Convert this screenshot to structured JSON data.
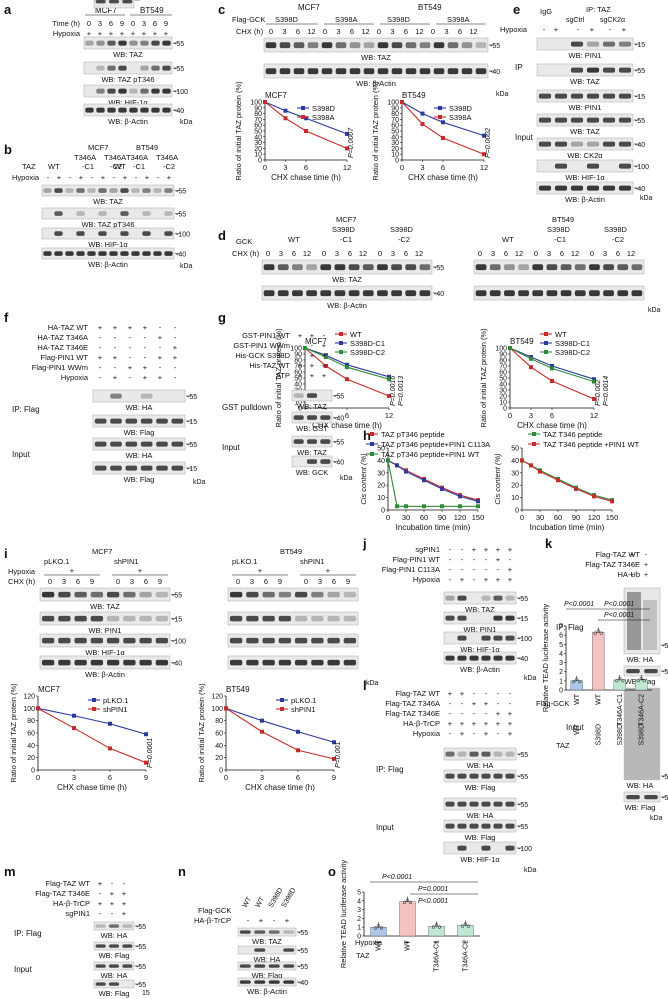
{
  "panels": [
    {
      "letter": "a",
      "rows": [
        [
          "Time (h)",
          "0",
          "3",
          "6",
          "9",
          "0",
          "3",
          "6",
          "9"
        ],
        [
          "Hypoxia",
          "+",
          "+",
          "+",
          "+",
          "+",
          "+",
          "+",
          "+"
        ]
      ],
      "groups": [
        "MCF7",
        "BT549"
      ],
      "blots": [
        "WB: TAZ",
        "WB: TAZ pT346",
        "WB: HIF-1α",
        "WB: β-Actin"
      ],
      "mw": [
        "55",
        "55",
        "100",
        "40"
      ],
      "kda": "kDa"
    },
    {
      "letter": "b",
      "groups": [
        "MCF7",
        "T346A",
        "T346A",
        "BT549",
        "T346A",
        "T346A",
        "-C1",
        "-C2",
        "-C1",
        "-C2"
      ],
      "rows": [
        [
          "TAZ",
          "WT",
          "WT"
        ],
        [
          "Hypoxia",
          "-",
          "+",
          "-",
          "+",
          "-",
          "+",
          "-",
          "+",
          "-",
          "+",
          "-",
          "+"
        ]
      ],
      "blots": [
        "WB: TAZ",
        "WB: TAZ pT346",
        "WB: HIF-1α",
        "WB: β-Actin"
      ],
      "mw": [
        "55",
        "55",
        "100",
        "40"
      ],
      "kda": "kDa"
    },
    {
      "letter": "c",
      "groups": [
        "MCF7",
        "BT549",
        "S398D",
        "S398A",
        "S398D",
        "S398A"
      ],
      "rows": [
        [
          "Flag-GCK"
        ],
        [
          "CHX (h)",
          "0",
          "3",
          "6",
          "12",
          "0",
          "3",
          "6",
          "12",
          "0",
          "3",
          "6",
          "12",
          "0",
          "3",
          "6",
          "12"
        ]
      ],
      "blots": [
        "WB: TAZ",
        "WB: β-Actin"
      ],
      "mw": [
        "55",
        "40"
      ],
      "kda": "kDa"
    },
    {
      "letter": "d",
      "groups": [
        "MCF7",
        "BT549",
        "S398D",
        "S398D",
        "S398D",
        "S398D",
        "WT",
        "-C1",
        "-C2",
        "WT",
        "-C1",
        "-C2"
      ],
      "rows": [
        [
          "GCK"
        ],
        [
          "CHX (h)",
          "0",
          "3",
          "6",
          "12"
        ]
      ],
      "blots": [
        "WB: TAZ",
        "WB: β-Actin"
      ],
      "mw": [
        "55",
        "40"
      ],
      "kda": "kDa"
    },
    {
      "letter": "e",
      "groups": [
        "IgG",
        "IP: TAZ",
        "sgCtrl",
        "sgCK2α"
      ],
      "rows": [
        [
          "Hypoxia",
          "-",
          "+",
          "-",
          "+"
        ]
      ],
      "sections": [
        "IP",
        "Input"
      ],
      "blots": [
        "WB: PIN1",
        "WB: TAZ",
        "WB: PIN1",
        "WB: TAZ",
        "WB: CK2α",
        "WB: HIF-1α",
        "WB: β-Actin"
      ],
      "mw": [
        "15",
        "55",
        "15",
        "55",
        "40",
        "100",
        "40"
      ],
      "kda": "kDa"
    },
    {
      "letter": "f",
      "rows": [
        [
          "HA-TAZ WT",
          "+",
          "+",
          "+",
          "+",
          "-",
          "-"
        ],
        [
          "HA-TAZ T346A",
          "-",
          "-",
          "-",
          "-",
          "+",
          "-"
        ],
        [
          "HA-TAZ T346E",
          "-",
          "-",
          "-",
          "-",
          "-",
          "+"
        ],
        [
          "Flag-PIN1 WT",
          "+",
          "+",
          "-",
          "-",
          "+",
          "+"
        ],
        [
          "Flag-PIN1 WWm",
          "-",
          "-",
          "+",
          "+",
          "-",
          "-"
        ],
        [
          "Hypoxia",
          "-",
          "+",
          "-",
          "+",
          "+",
          "-"
        ]
      ],
      "sections": [
        "IP: Flag",
        "Input"
      ],
      "blots": [
        "WB: HA",
        "WB: Flag",
        "WB: HA",
        "WB: Flag"
      ],
      "mw": [
        "55",
        "15",
        "55",
        "15"
      ],
      "kda": "kDa"
    },
    {
      "letter": "g",
      "rows": [
        [
          "GST-PIN1 WT",
          "+",
          "+",
          "-"
        ],
        [
          "GST-PIN1 WWm",
          "-",
          "-",
          "+"
        ],
        [
          "His-GCK S398D",
          "-",
          "+",
          "+"
        ],
        [
          "His-TAZ WT",
          "+",
          "+",
          "+"
        ],
        [
          "ATP",
          "+",
          "+",
          "+"
        ]
      ],
      "sections": [
        "GST pulldown",
        "Input"
      ],
      "blots": [
        "WB: TAZ",
        "WB: GST",
        "WB: TAZ",
        "WB: GCK"
      ],
      "mw": [
        "55",
        "40",
        "55",
        "40"
      ],
      "kda": "kDa"
    },
    {
      "letter": "i",
      "groups": [
        "MCF7",
        "BT549",
        "pLKO.1",
        "shPIN1",
        "pLKO.1",
        "shPIN1"
      ],
      "rows": [
        [
          "Hypoxia",
          "+"
        ],
        [
          "CHX (h)",
          "0",
          "3",
          "6",
          "9"
        ]
      ],
      "blots": [
        "WB: TAZ",
        "WB: PIN1",
        "WB: HIF-1α",
        "WB: β-Actin"
      ],
      "mw": [
        "55",
        "15",
        "100",
        "40"
      ],
      "kda": "kDa"
    },
    {
      "letter": "j",
      "rows": [
        [
          "sgPIN1",
          "-",
          "-",
          "+",
          "+",
          "+",
          "+"
        ],
        [
          "Flag-PIN1 WT",
          "-",
          "-",
          "-",
          "-",
          "+",
          "-"
        ],
        [
          "Flag-PIN1 C113A",
          "-",
          "-",
          "-",
          "-",
          "-",
          "+"
        ],
        [
          "Hypoxia",
          "-",
          "+",
          "-",
          "+",
          "+",
          "+"
        ]
      ],
      "blots": [
        "WB: TAZ",
        "WB: PIN1",
        "WB: HIF-1α",
        "WB: β-Actin"
      ],
      "mw": [
        "55",
        "15",
        "100",
        "40"
      ],
      "kda": "kDa"
    },
    {
      "letter": "k",
      "rows": [
        [
          "Flag-TAZ WT",
          "+",
          "-"
        ],
        [
          "Flag-TAZ T346E",
          "-",
          "+"
        ],
        [
          "HA-Ub",
          "+",
          "+"
        ]
      ],
      "sections": [
        "IP: Flag",
        "Input"
      ],
      "blots": [
        "WB: HA",
        "WB: Flag",
        "WB: HA",
        "WB: Flag"
      ],
      "mw": [
        "55",
        "55",
        "55",
        "55"
      ],
      "kda": "kDa"
    },
    {
      "letter": "l",
      "rows": [
        [
          "Flag-TAZ WT",
          "+",
          "+",
          "-",
          "-",
          "-",
          "-"
        ],
        [
          "Flag-TAZ T346A",
          "-",
          "-",
          "+",
          "+",
          "-",
          "-"
        ],
        [
          "Flag-TAZ T346E",
          "-",
          "-",
          "-",
          "-",
          "+",
          "+"
        ],
        [
          "HA-β-TrCP",
          "+",
          "+",
          "+",
          "+",
          "+",
          "+"
        ],
        [
          "Hypoxia",
          "-",
          "+",
          "-",
          "+",
          "-",
          "+"
        ]
      ],
      "sections": [
        "IP: Flag",
        "Input"
      ],
      "blots": [
        "WB: HA",
        "WB: Flag",
        "WB: HA",
        "WB: Flag",
        "WB: HIF-1α"
      ],
      "mw": [
        "55",
        "55",
        "55",
        "55",
        "100"
      ],
      "kda": "kDa"
    },
    {
      "letter": "m",
      "rows": [
        [
          "Flag-TAZ WT",
          "+",
          "-",
          "-"
        ],
        [
          "Flag-TAZ T346E",
          "-",
          "+",
          "+"
        ],
        [
          "HA-β-TrCP",
          "+",
          "+",
          "+"
        ],
        [
          "sgPIN1",
          "-",
          "-",
          "+"
        ]
      ],
      "sections": [
        "IP: Flag",
        "Input"
      ],
      "blots": [
        "WB: HA",
        "WB: Flag",
        "WB: HA",
        "WB: Flag",
        "WB: PIN1"
      ],
      "mw": [
        "55",
        "55",
        "55",
        "55",
        "15"
      ],
      "kda": "kDa"
    },
    {
      "letter": "n",
      "rows": [
        [
          "Flag-GCK",
          "WT",
          "WT",
          "S398D",
          "S398D"
        ],
        [
          "HA-β-TrCP",
          "-",
          "+",
          "-",
          "+"
        ]
      ],
      "blots": [
        "WB: TAZ",
        "WB: HA",
        "WB: Flag",
        "WB: β-Actin"
      ],
      "mw": [
        "55",
        "55",
        "55",
        "40"
      ],
      "kda": "kDa"
    }
  ],
  "chart_data": [
    {
      "id": "c-mcf7",
      "type": "line",
      "title": "MCF7",
      "xlabel": "CHX chase time (h)",
      "ylabel": "Ratio of initial TAZ protein (%)",
      "x": [
        0,
        3,
        6,
        12
      ],
      "xticks": [
        "0",
        "3",
        "6",
        "12"
      ],
      "yticks": [
        "0",
        "10",
        "20",
        "30",
        "40",
        "50",
        "60",
        "70",
        "80",
        "90",
        "100"
      ],
      "ylim": [
        0,
        100
      ],
      "series": [
        {
          "name": "S398D",
          "values": [
            100,
            85,
            72,
            45
          ],
          "color": "#2b3a9b"
        },
        {
          "name": "S398A",
          "values": [
            100,
            72,
            50,
            20
          ],
          "color": "#c72a2a"
        }
      ],
      "annotations": [
        "P=0.0007"
      ]
    },
    {
      "id": "c-bt549",
      "type": "line",
      "title": "BT549",
      "xlabel": "CHX chase time (h)",
      "ylabel": "Ratio of initial TAZ protein (%)",
      "x": [
        0,
        3,
        6,
        12
      ],
      "xticks": [
        "0",
        "3",
        "6",
        "12"
      ],
      "yticks": [
        "0",
        "10",
        "20",
        "30",
        "40",
        "50",
        "60",
        "70",
        "80",
        "90",
        "100"
      ],
      "ylim": [
        0,
        100
      ],
      "series": [
        {
          "name": "S398D",
          "values": [
            100,
            80,
            65,
            42
          ],
          "color": "#2b3a9b"
        },
        {
          "name": "S398A",
          "values": [
            100,
            62,
            38,
            10
          ],
          "color": "#c72a2a"
        }
      ],
      "annotations": [
        "P=0.0002"
      ]
    },
    {
      "id": "d-mcf7",
      "type": "line",
      "title": "MCF7",
      "xlabel": "CHX chase time (h)",
      "ylabel": "Ratio of initial TAZ protein (%)",
      "x": [
        0,
        3,
        6,
        12
      ],
      "xticks": [
        "0",
        "3",
        "6",
        "12"
      ],
      "yticks": [
        "0",
        "10",
        "20",
        "30",
        "40",
        "50",
        "60",
        "70",
        "80",
        "90",
        "100"
      ],
      "ylim": [
        0,
        100
      ],
      "series": [
        {
          "name": "WT",
          "values": [
            100,
            70,
            48,
            20
          ],
          "color": "#c72a2a"
        },
        {
          "name": "S398D-C1",
          "values": [
            100,
            88,
            72,
            52
          ],
          "color": "#2b3a9b"
        },
        {
          "name": "S398D-C2",
          "values": [
            100,
            85,
            68,
            48
          ],
          "color": "#2e8b3a"
        }
      ],
      "annotations": [
        "P=0.0016",
        "P=0.0013"
      ]
    },
    {
      "id": "d-bt549",
      "type": "line",
      "title": "BT549",
      "xlabel": "CHX chase time (h)",
      "ylabel": "Ratio of initial TAZ protein (%)",
      "x": [
        0,
        3,
        6,
        12
      ],
      "xticks": [
        "0",
        "3",
        "6",
        "12"
      ],
      "yticks": [
        "0",
        "10",
        "20",
        "30",
        "40",
        "50",
        "60",
        "70",
        "80",
        "90",
        "100"
      ],
      "ylim": [
        0,
        100
      ],
      "series": [
        {
          "name": "WT",
          "values": [
            100,
            68,
            45,
            15
          ],
          "color": "#c72a2a"
        },
        {
          "name": "S398D-C1",
          "values": [
            100,
            85,
            70,
            48
          ],
          "color": "#2b3a9b"
        },
        {
          "name": "S398D-C2",
          "values": [
            100,
            82,
            66,
            44
          ],
          "color": "#2e8b3a"
        }
      ],
      "annotations": [
        "P=0.002",
        "P=0.0014"
      ]
    },
    {
      "id": "h-left",
      "type": "line",
      "xlabel": "Incubation time (min)",
      "ylabel": "Cis content (%)",
      "x": [
        0,
        15,
        30,
        60,
        90,
        120,
        150
      ],
      "xticks": [
        "0",
        "30",
        "60",
        "90",
        "120",
        "150"
      ],
      "xvals": [
        0,
        30,
        60,
        90,
        120,
        150
      ],
      "yticks": [
        "0",
        "10",
        "20",
        "30",
        "40",
        "50"
      ],
      "ylim": [
        0,
        50
      ],
      "xlim": [
        0,
        150
      ],
      "series": [
        {
          "name": "TAZ pT346 peptide",
          "values": [
            40,
            36,
            32,
            25,
            18,
            12,
            8
          ],
          "color": "#c72a2a"
        },
        {
          "name": "TAZ pT346 peptide+PIN1 C113A",
          "values": [
            40,
            36,
            31,
            24,
            17,
            11,
            7
          ],
          "color": "#2b3a9b"
        },
        {
          "name": "TAZ pT346 peptide+PIN1 WT",
          "values": [
            40,
            3,
            3,
            3,
            3,
            3,
            3
          ],
          "color": "#2e8b3a"
        }
      ]
    },
    {
      "id": "h-right",
      "type": "line",
      "xlabel": "Incubation time (min)",
      "ylabel": "Cis content (%)",
      "x": [
        0,
        15,
        30,
        60,
        90,
        120,
        150
      ],
      "xticks": [
        "0",
        "30",
        "60",
        "90",
        "120",
        "150"
      ],
      "xvals": [
        0,
        30,
        60,
        90,
        120,
        150
      ],
      "yticks": [
        "0",
        "10",
        "20",
        "30",
        "40",
        "50"
      ],
      "ylim": [
        0,
        50
      ],
      "xlim": [
        0,
        150
      ],
      "series": [
        {
          "name": "TAZ T346 peptide",
          "values": [
            40,
            36,
            32,
            25,
            18,
            12,
            8
          ],
          "color": "#2e8b3a"
        },
        {
          "name": "TAZ T346 peptide +PIN1 WT",
          "values": [
            40,
            36,
            31,
            24,
            17,
            11,
            7
          ],
          "color": "#c72a2a"
        }
      ]
    },
    {
      "id": "i-mcf7",
      "type": "line",
      "title": "MCF7",
      "xlabel": "CHX chase time (h)",
      "ylabel": "Ratio of initial TAZ protein (%)",
      "x": [
        0,
        3,
        6,
        9
      ],
      "xticks": [
        "0",
        "3",
        "6",
        "9"
      ],
      "yticks": [
        "0",
        "20",
        "40",
        "60",
        "80",
        "100",
        "120"
      ],
      "ylim": [
        0,
        120
      ],
      "series": [
        {
          "name": "pLKO.1",
          "values": [
            100,
            88,
            75,
            58
          ],
          "color": "#2b3a9b"
        },
        {
          "name": "shPIN1",
          "values": [
            100,
            68,
            35,
            12
          ],
          "color": "#c72a2a"
        }
      ],
      "annotations": [
        "P=0.0001"
      ]
    },
    {
      "id": "i-bt549",
      "type": "line",
      "title": "BT549",
      "xlabel": "CHX chase time (h)",
      "ylabel": "Ratio of initial TAZ protein (%)",
      "x": [
        0,
        3,
        6,
        9
      ],
      "xticks": [
        "0",
        "3",
        "6",
        "9"
      ],
      "yticks": [
        "0",
        "20",
        "40",
        "60",
        "80",
        "100",
        "120"
      ],
      "ylim": [
        0,
        120
      ],
      "series": [
        {
          "name": "pLKO.1",
          "values": [
            100,
            80,
            62,
            45
          ],
          "color": "#2b3a9b"
        },
        {
          "name": "shPIN1",
          "values": [
            100,
            62,
            32,
            18
          ],
          "color": "#c72a2a"
        }
      ],
      "annotations": [
        "P=0.001"
      ]
    },
    {
      "id": "o-left",
      "type": "bar",
      "ylabel": "Relative TEAD luciferase activity",
      "yticks": [
        "0",
        "1",
        "2",
        "3",
        "4",
        "5"
      ],
      "ylim": [
        0,
        5
      ],
      "categories": [
        "WT",
        "WT",
        "T346A-C1",
        "T346A-C2"
      ],
      "values": [
        1.0,
        3.9,
        1.1,
        1.2
      ],
      "colors": [
        "#aec6e8",
        "#f4c2c2",
        "#bfe8d4",
        "#bfe8d4"
      ],
      "rows": [
        [
          "Hypoxia",
          "-",
          "+",
          "+",
          "+"
        ],
        [
          "TAZ"
        ]
      ],
      "annotations": [
        "P<0.0001",
        "P=0.0001",
        "P<0.0001"
      ]
    },
    {
      "id": "o-right",
      "type": "bar",
      "ylabel": "Relative TEAD luciferase activity",
      "yticks": [
        "0",
        "1",
        "2",
        "3",
        "4",
        "5",
        "6",
        "7"
      ],
      "ylim": [
        0,
        7
      ],
      "categories": [
        "WT",
        "WT",
        "T346A-C1",
        "T346A-C2"
      ],
      "cat2": [
        "WT",
        "S398D",
        "S398D",
        "S398D"
      ],
      "values": [
        1.0,
        6.3,
        1.1,
        1.1
      ],
      "colors": [
        "#aec6e8",
        "#f4c2c2",
        "#bfe8d4",
        "#bfe8d4"
      ],
      "rows": [
        [
          "Flag-GCK"
        ],
        [
          "TAZ"
        ]
      ],
      "annotations": [
        "P<0.0001",
        "P<0.0001",
        "P<0.0001"
      ]
    }
  ]
}
